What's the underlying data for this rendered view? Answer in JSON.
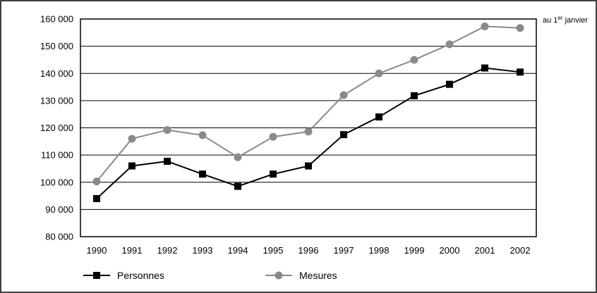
{
  "chart_data": {
    "type": "line",
    "categories": [
      "1990",
      "1991",
      "1992",
      "1993",
      "1994",
      "1995",
      "1996",
      "1997",
      "1998",
      "1999",
      "2000",
      "2001",
      "2002"
    ],
    "ylim": [
      80000,
      160000
    ],
    "yticks": [
      80000,
      90000,
      100000,
      110000,
      120000,
      130000,
      140000,
      150000,
      160000
    ],
    "ytick_labels": [
      "80 000",
      "90 000",
      "100 000",
      "110 000",
      "120 000",
      "130 000",
      "140 000",
      "150 000",
      "160 000"
    ],
    "grid": "horizontal",
    "legend_position": "bottom-left",
    "note": {
      "prefix": "au 1",
      "sup": "er",
      "suffix": " janvier"
    },
    "series": [
      {
        "name": "Personnes",
        "color": "#000000",
        "marker": "square",
        "values": [
          94000,
          106000,
          107700,
          103000,
          98500,
          103000,
          106000,
          117500,
          124000,
          131800,
          136000,
          142000,
          140500
        ]
      },
      {
        "name": "Mesures",
        "color": "#8a8a8a",
        "marker": "circle",
        "values": [
          100300,
          116000,
          119200,
          117300,
          109200,
          116700,
          118600,
          132000,
          140000,
          145000,
          150700,
          157300,
          156700
        ]
      }
    ]
  }
}
